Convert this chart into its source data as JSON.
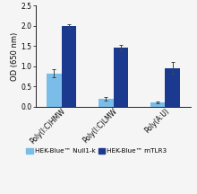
{
  "groups": [
    "Poly(I:C)HMW",
    "Poly(I:C)LMW",
    "Poly(A:U)"
  ],
  "null1k_values": [
    0.83,
    0.2,
    0.11
  ],
  "null1k_errors": [
    0.09,
    0.05,
    0.03
  ],
  "mtlr3_values": [
    1.99,
    1.47,
    0.96
  ],
  "mtlr3_errors": [
    0.06,
    0.07,
    0.14
  ],
  "null1k_color": "#7abde8",
  "mtlr3_color": "#1b3a8f",
  "ylabel": "OD (650 nm)",
  "ylim": [
    0,
    2.5
  ],
  "yticks": [
    0.0,
    0.5,
    1.0,
    1.5,
    2.0,
    2.5
  ],
  "legend_null1k": "HEK-Blue™ Null1-k",
  "legend_mtlr3": "HEK-Blue™ mTLR3",
  "bar_width": 0.28,
  "group_positions": [
    0,
    1,
    2
  ],
  "background_color": "#f5f5f5",
  "axis_fontsize": 6.0,
  "tick_fontsize": 5.5,
  "legend_fontsize": 5.2
}
